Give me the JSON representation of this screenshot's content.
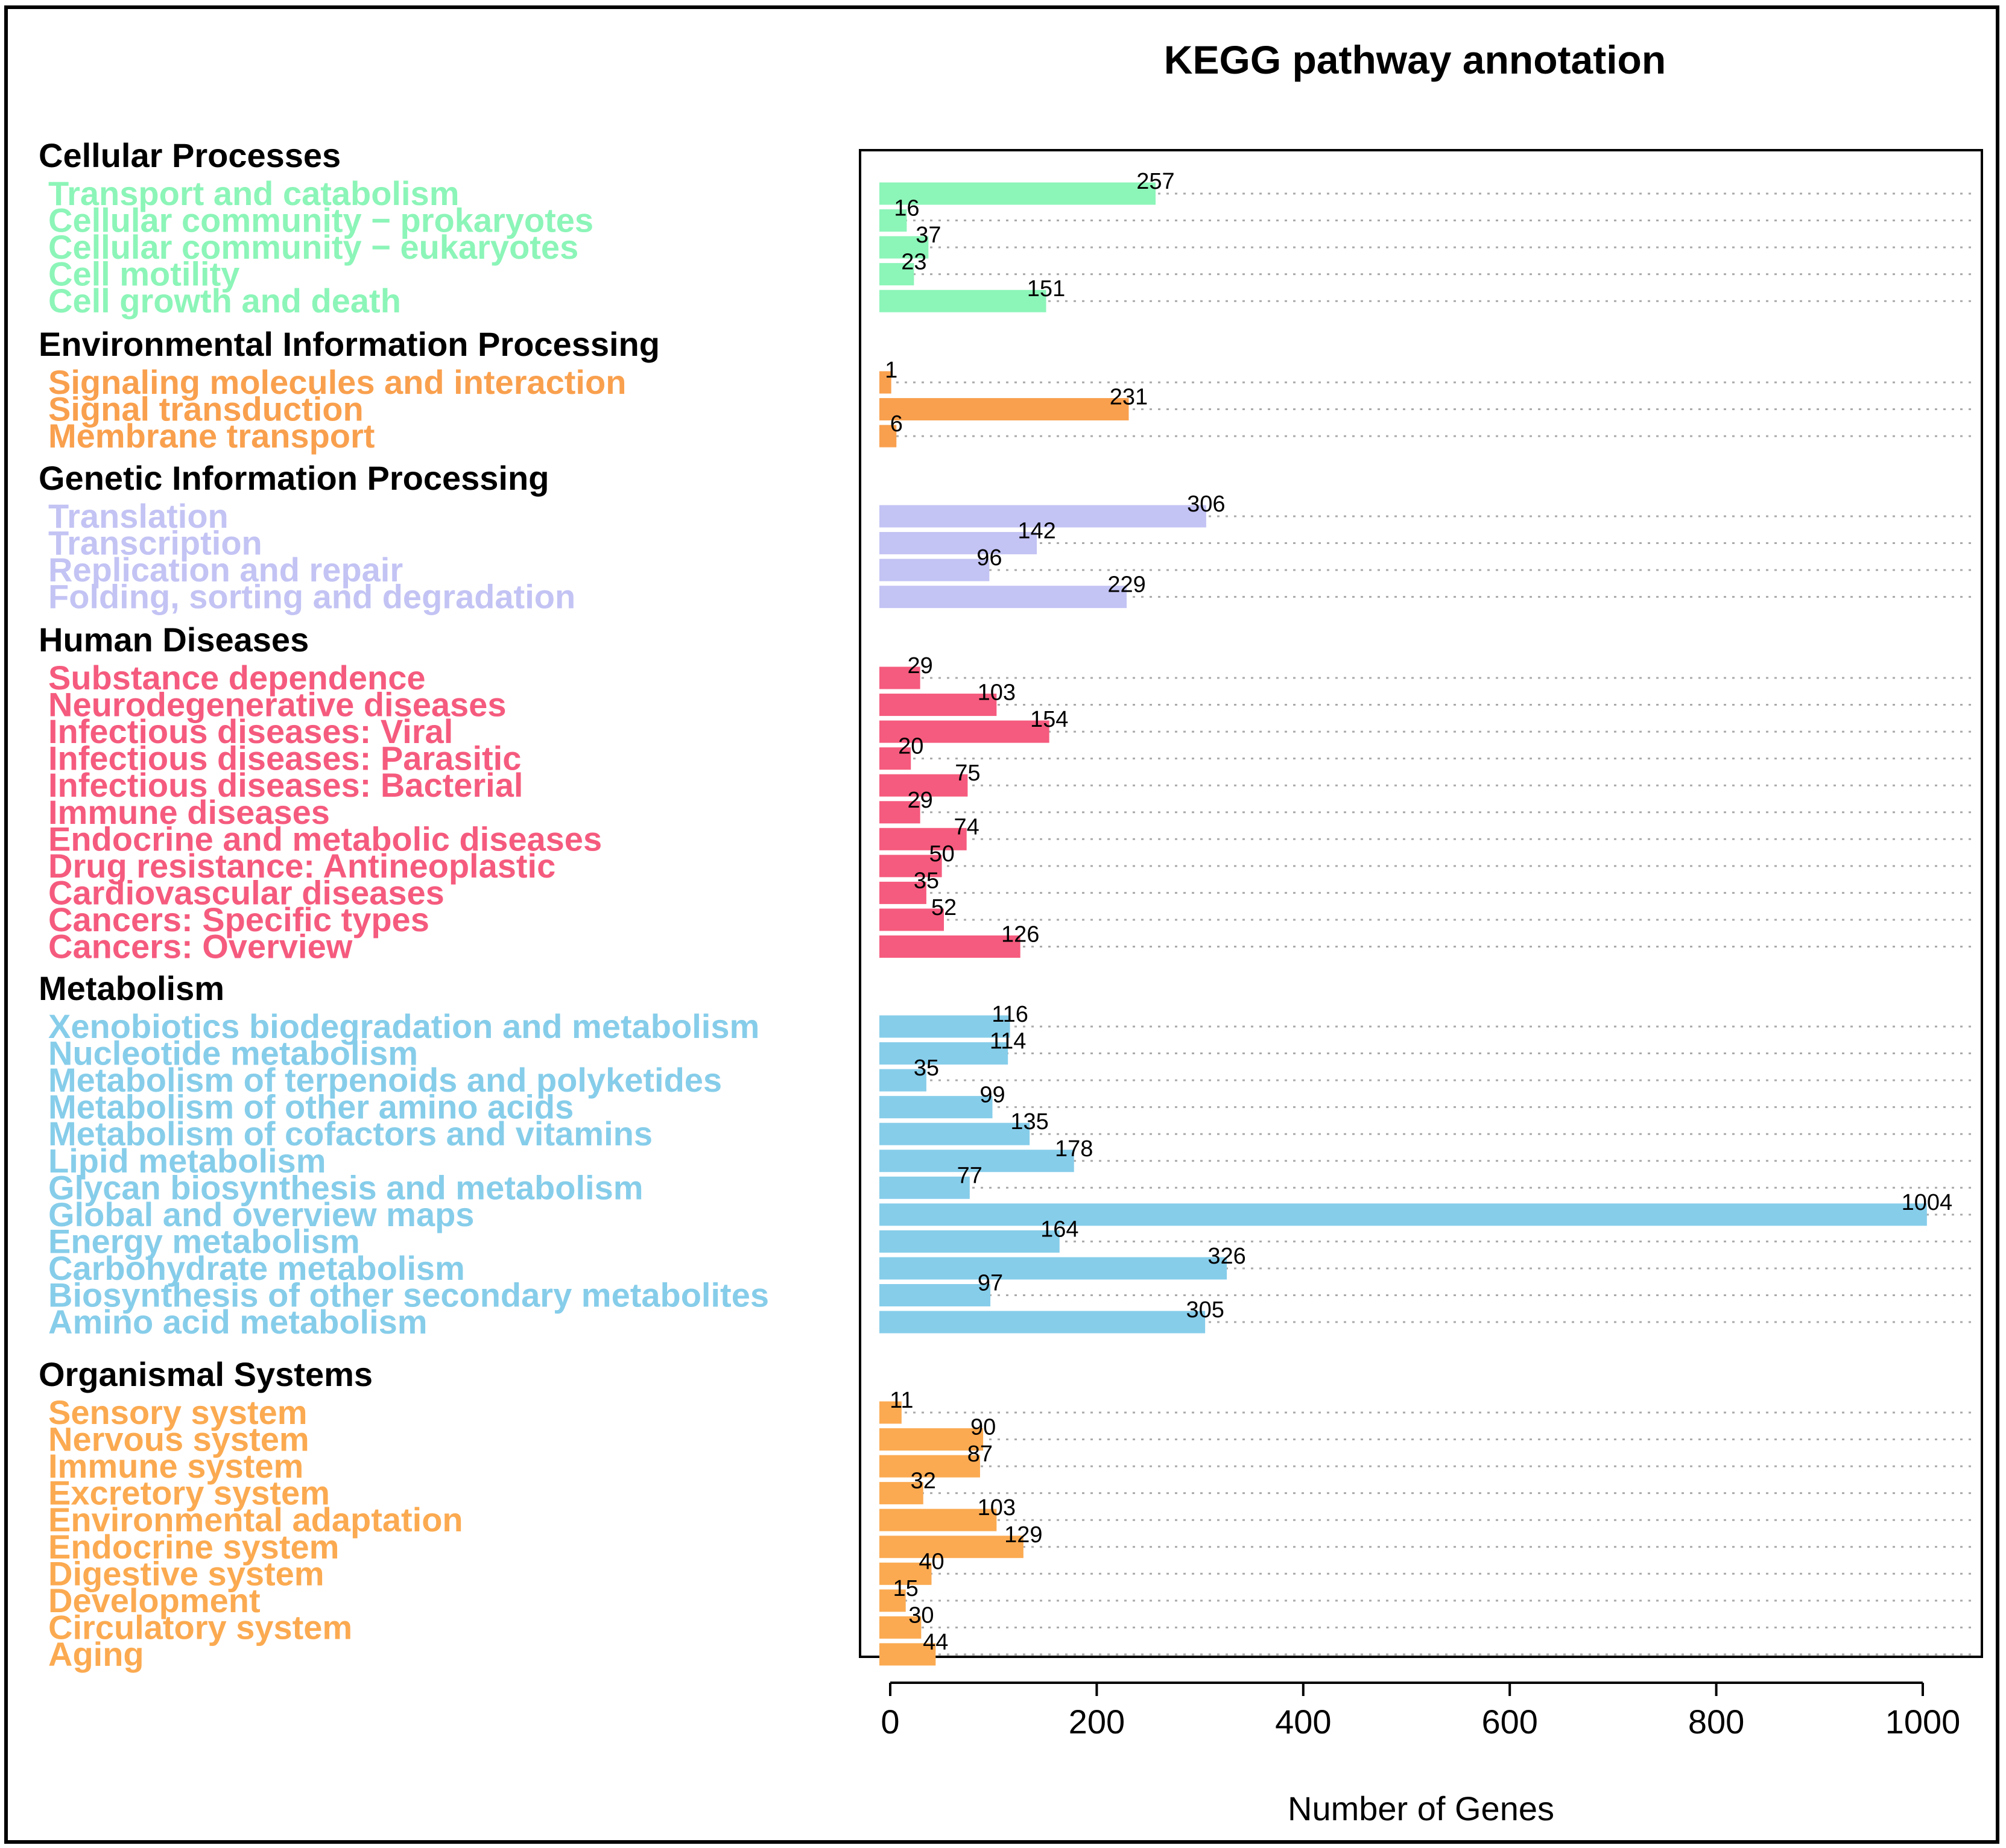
{
  "chart_data": {
    "type": "bar",
    "orientation": "horizontal",
    "title": "KEGG pathway annotation",
    "xlabel": "Number of Genes",
    "ylabel": "",
    "xlim": [
      0,
      1000
    ],
    "xticks": [
      0,
      200,
      400,
      600,
      800,
      1000
    ],
    "grid": "dotted horizontal",
    "groups": [
      {
        "name": "Cellular Processes",
        "color": "#8CF5B8",
        "categories": [
          "Transport and catabolism",
          "Cellular community − prokaryotes",
          "Cellular community − eukaryotes",
          "Cell motility",
          "Cell growth and death"
        ],
        "values": [
          257,
          16,
          37,
          23,
          151
        ]
      },
      {
        "name": "Environmental Information Processing",
        "color": "#F9A04E",
        "categories": [
          "Signaling molecules and interaction",
          "Signal transduction",
          "Membrane transport"
        ],
        "values": [
          1,
          231,
          6
        ]
      },
      {
        "name": "Genetic Information Processing",
        "color": "#C3C3F4",
        "categories": [
          "Translation",
          "Transcription",
          "Replication and repair",
          "Folding, sorting and degradation"
        ],
        "values": [
          306,
          142,
          96,
          229
        ]
      },
      {
        "name": "Human Diseases",
        "color": "#F55B7E",
        "categories": [
          "Substance dependence",
          "Neurodegenerative diseases",
          "Infectious diseases: Viral",
          "Infectious diseases: Parasitic",
          "Infectious diseases: Bacterial",
          "Immune diseases",
          "Endocrine and metabolic diseases",
          "Drug resistance: Antineoplastic",
          "Cardiovascular diseases",
          "Cancers: Specific types",
          "Cancers: Overview"
        ],
        "values": [
          29,
          103,
          154,
          20,
          75,
          29,
          74,
          50,
          35,
          52,
          126
        ]
      },
      {
        "name": "Metabolism",
        "color": "#86CDEA",
        "categories": [
          "Xenobiotics biodegradation and metabolism",
          "Nucleotide metabolism",
          "Metabolism of terpenoids and polyketides",
          "Metabolism of other amino acids",
          "Metabolism of cofactors and vitamins",
          "Lipid metabolism",
          "Glycan biosynthesis and metabolism",
          "Global and overview maps",
          "Energy metabolism",
          "Carbohydrate metabolism",
          "Biosynthesis of other secondary metabolites",
          "Amino acid metabolism"
        ],
        "values": [
          116,
          114,
          35,
          99,
          135,
          178,
          77,
          1004,
          164,
          326,
          97,
          305
        ]
      },
      {
        "name": "Organismal Systems",
        "color": "#FBAA51",
        "categories": [
          "Sensory system",
          "Nervous system",
          "Immune system",
          "Excretory system",
          "Environmental adaptation",
          "Endocrine system",
          "Digestive system",
          "Development",
          "Circulatory system",
          "Aging"
        ],
        "values": [
          11,
          90,
          87,
          32,
          103,
          129,
          40,
          15,
          30,
          44
        ]
      }
    ]
  }
}
